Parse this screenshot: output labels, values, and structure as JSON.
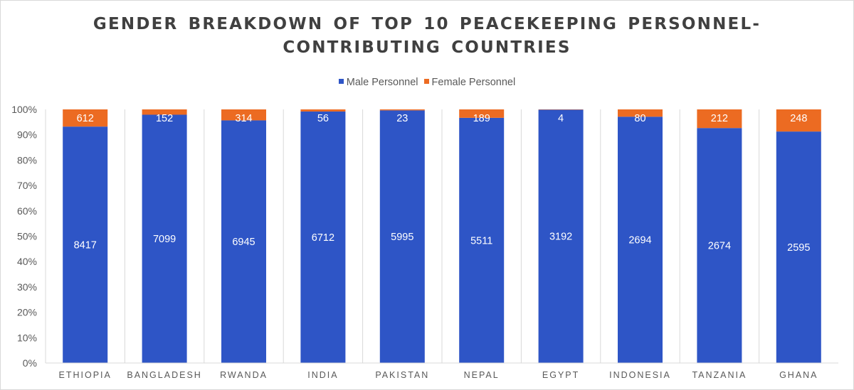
{
  "chart_data": {
    "type": "bar",
    "stacked": "percent",
    "title_lines": [
      "GENDER BREAKDOWN OF TOP 10 PEACEKEEPING PERSONNEL-",
      "CONTRIBUTING COUNTRIES"
    ],
    "categories": [
      "ETHIOPIA",
      "BANGLADESH",
      "RWANDA",
      "INDIA",
      "PAKISTAN",
      "NEPAL",
      "EGYPT",
      "INDONESIA",
      "TANZANIA",
      "GHANA"
    ],
    "series": [
      {
        "name": "Male Personnel",
        "color": "#2e55c6",
        "values": [
          8417,
          7099,
          6945,
          6712,
          5995,
          5511,
          3192,
          2694,
          2674,
          2595
        ]
      },
      {
        "name": "Female Personnel",
        "color": "#ec6b22",
        "values": [
          612,
          152,
          314,
          56,
          23,
          189,
          4,
          80,
          212,
          248
        ]
      }
    ],
    "yticks": [
      "0%",
      "10%",
      "20%",
      "30%",
      "40%",
      "50%",
      "60%",
      "70%",
      "80%",
      "90%",
      "100%"
    ],
    "ylim": [
      0,
      100
    ],
    "grid": false,
    "legend_position": "top"
  }
}
